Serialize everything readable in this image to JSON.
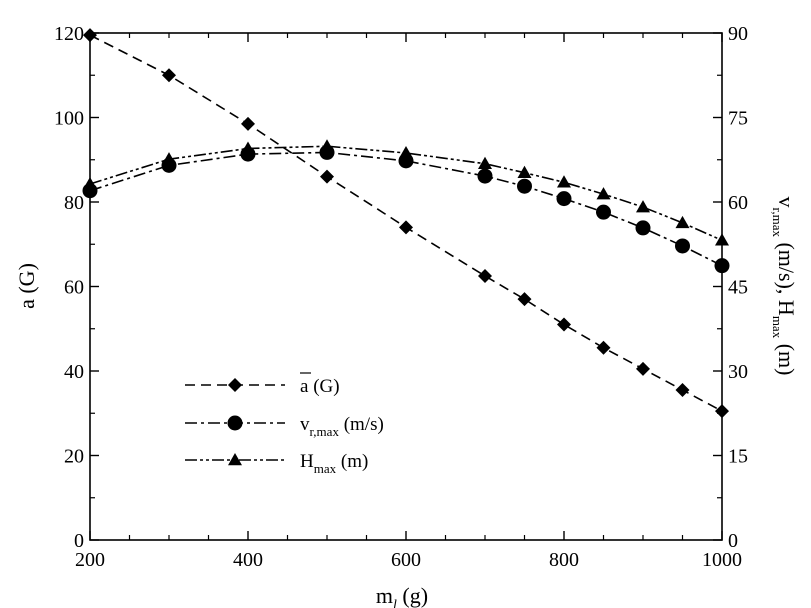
{
  "chart_data": {
    "type": "line",
    "x": [
      200,
      300,
      400,
      500,
      600,
      700,
      750,
      800,
      850,
      900,
      950,
      1000
    ],
    "xlim": [
      200,
      1000
    ],
    "x_ticks": [
      "200",
      "400",
      "600",
      "800",
      "1000"
    ],
    "x_tick_values": [
      200,
      400,
      600,
      800,
      1000
    ],
    "xlabel": {
      "main": "m",
      "sub": "l",
      "unit": " (g)"
    },
    "ylim_left": [
      0,
      120
    ],
    "y_left_ticks": [
      "0",
      "20",
      "40",
      "60",
      "80",
      "100",
      "120"
    ],
    "y_left_tick_values": [
      0,
      20,
      40,
      60,
      80,
      100,
      120
    ],
    "ylabel_left": "a (G)",
    "ylim_right": [
      0,
      90
    ],
    "y_right_ticks": [
      "0",
      "15",
      "30",
      "45",
      "60",
      "75",
      "90"
    ],
    "y_right_tick_values": [
      0,
      15,
      30,
      45,
      60,
      75,
      90
    ],
    "ylabel_right": {
      "v": "v",
      "v_sub": "r,max",
      "v_unit": " (m/s), ",
      "h": "H",
      "h_sub": "max",
      "h_unit": " (m)"
    },
    "grid": false,
    "legend_position": "lower-left",
    "series": [
      {
        "name": "a (G)",
        "legend_main": "a",
        "legend_sub": "",
        "legend_unit": " (G)",
        "axis": "left",
        "marker": "diamond",
        "dash": "dashed",
        "values": [
          119.5,
          110,
          98.5,
          86,
          74,
          62.5,
          57,
          51,
          45.5,
          40.5,
          35.5,
          30.5
        ]
      },
      {
        "name": "v_r,max (m/s)",
        "legend_main": "v",
        "legend_sub": "r,max",
        "legend_unit": " (m/s)",
        "axis": "right",
        "marker": "circle",
        "dash": "dashdot",
        "values": [
          62,
          66.5,
          68.5,
          68.8,
          67.3,
          64.6,
          62.8,
          60.6,
          58.2,
          55.4,
          52.2,
          48.7
        ]
      },
      {
        "name": "H_max (m)",
        "legend_main": "H",
        "legend_sub": "max",
        "legend_unit": " (m)",
        "axis": "right",
        "marker": "triangle",
        "dash": "dashdotdot",
        "values": [
          63.2,
          67.6,
          69.5,
          69.9,
          68.7,
          66.8,
          65.2,
          63.5,
          61.4,
          59.1,
          56.3,
          53.2
        ]
      }
    ]
  }
}
